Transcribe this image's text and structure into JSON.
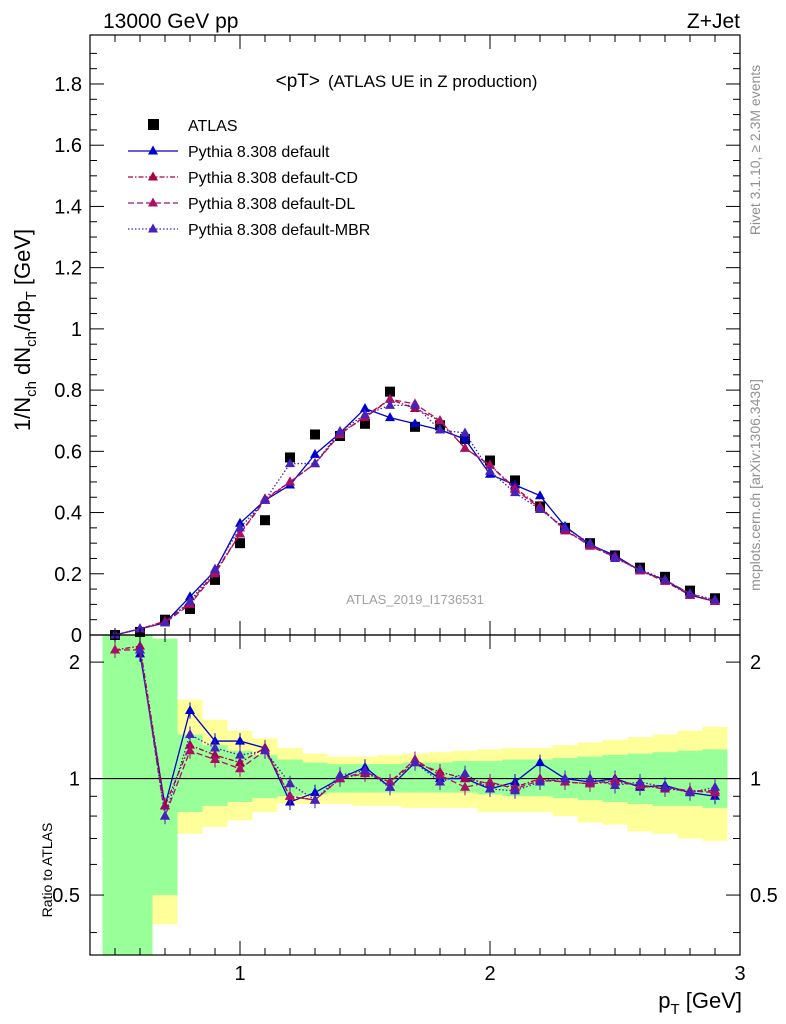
{
  "header": {
    "left": "13000 GeV pp",
    "right": "Z+Jet"
  },
  "side": {
    "rivet": "Rivet 3.1.10, ≥ 2.3M events",
    "mcplots": "mcplots.cern.ch [arXiv:1306.3436]"
  },
  "chart_data": [
    {
      "type": "scatter",
      "title_main": "<pT>",
      "title_sub": "(ATLAS UE in Z production)",
      "ylabel": "1/N_ch dN_ch/dp_T [GeV]",
      "watermark": "ATLAS_2019_I1736531",
      "xlim": [
        0.4,
        3.0
      ],
      "ylim": [
        0,
        1.96
      ],
      "yticks": [
        "0",
        "0.2",
        "0.4",
        "0.6",
        "0.8",
        "1",
        "1.2",
        "1.4",
        "1.6",
        "1.8"
      ],
      "legend_position": "top-left",
      "x": [
        0.5,
        0.6,
        0.7,
        0.8,
        0.9,
        1.0,
        1.1,
        1.2,
        1.3,
        1.4,
        1.5,
        1.6,
        1.7,
        1.8,
        1.9,
        2.0,
        2.1,
        2.2,
        2.3,
        2.4,
        2.5,
        2.6,
        2.7,
        2.8,
        2.9
      ],
      "series": [
        {
          "name": "ATLAS",
          "color": "#000000",
          "marker": "square",
          "line": "none",
          "values": [
            0.0,
            0.01,
            0.05,
            0.085,
            0.18,
            0.3,
            0.375,
            0.58,
            0.655,
            0.65,
            0.69,
            0.795,
            0.68,
            0.685,
            0.64,
            0.57,
            0.505,
            0.42,
            0.35,
            0.3,
            0.26,
            0.22,
            0.19,
            0.145,
            0.12
          ]
        },
        {
          "name": "Pythia 8.308 default",
          "color": "#0000cc",
          "marker": "triangle",
          "line": "solid",
          "values": [
            0.0,
            0.02,
            0.04,
            0.125,
            0.21,
            0.365,
            0.44,
            0.49,
            0.59,
            0.66,
            0.74,
            0.71,
            0.69,
            0.67,
            0.64,
            0.525,
            0.49,
            0.455,
            0.355,
            0.295,
            0.26,
            0.21,
            0.18,
            0.13,
            0.11
          ]
        },
        {
          "name": "Pythia 8.308 default-CD",
          "color": "#aa0044",
          "marker": "triangle",
          "line": "dashdot",
          "values": [
            0.0,
            0.02,
            0.045,
            0.105,
            0.205,
            0.33,
            0.445,
            0.5,
            0.56,
            0.66,
            0.71,
            0.77,
            0.74,
            0.7,
            0.61,
            0.555,
            0.48,
            0.42,
            0.34,
            0.295,
            0.255,
            0.21,
            0.175,
            0.13,
            0.11
          ]
        },
        {
          "name": "Pythia 8.308 default-DL",
          "color": "#aa1166",
          "marker": "triangle",
          "line": "dashed",
          "values": [
            0.0,
            0.02,
            0.04,
            0.1,
            0.2,
            0.33,
            0.44,
            0.5,
            0.56,
            0.655,
            0.715,
            0.77,
            0.755,
            0.7,
            0.61,
            0.555,
            0.475,
            0.415,
            0.345,
            0.29,
            0.255,
            0.21,
            0.18,
            0.135,
            0.11
          ]
        },
        {
          "name": "Pythia 8.308 default-MBR",
          "color": "#4422bb",
          "marker": "triangle",
          "line": "dotted",
          "values": [
            0.0,
            0.02,
            0.04,
            0.11,
            0.215,
            0.35,
            0.44,
            0.56,
            0.56,
            0.665,
            0.72,
            0.75,
            0.75,
            0.67,
            0.66,
            0.535,
            0.465,
            0.41,
            0.35,
            0.3,
            0.25,
            0.215,
            0.18,
            0.135,
            0.115
          ]
        }
      ]
    },
    {
      "type": "scatter",
      "ylabel": "Ratio to ATLAS",
      "xlabel": "p_T [GeV]",
      "xlim": [
        0.4,
        3.0
      ],
      "ylim": [
        0.35,
        2.35
      ],
      "yscale": "log",
      "xticks": [
        "1",
        "2",
        "3"
      ],
      "yticks": [
        "0.5",
        "1",
        "2"
      ],
      "x": [
        0.5,
        0.6,
        0.7,
        0.8,
        0.9,
        1.0,
        1.1,
        1.2,
        1.3,
        1.4,
        1.5,
        1.6,
        1.7,
        1.8,
        1.9,
        2.0,
        2.1,
        2.2,
        2.3,
        2.4,
        2.5,
        2.6,
        2.7,
        2.8,
        2.9
      ],
      "bands": {
        "x_edges": [
          0.45,
          0.65,
          0.75,
          0.85,
          0.95,
          1.05,
          1.15,
          1.25,
          1.35,
          1.45,
          1.55,
          1.65,
          1.75,
          1.85,
          1.95,
          2.05,
          2.15,
          2.25,
          2.35,
          2.45,
          2.55,
          2.65,
          2.75,
          2.85,
          2.95
        ],
        "yellow_lo": [
          0.35,
          0.42,
          0.72,
          0.75,
          0.78,
          0.82,
          0.86,
          0.86,
          0.86,
          0.85,
          0.85,
          0.84,
          0.84,
          0.84,
          0.82,
          0.82,
          0.82,
          0.8,
          0.77,
          0.76,
          0.73,
          0.72,
          0.7,
          0.69
        ],
        "yellow_hi": [
          2.35,
          2.3,
          1.6,
          1.42,
          1.33,
          1.27,
          1.2,
          1.16,
          1.14,
          1.14,
          1.15,
          1.16,
          1.17,
          1.18,
          1.19,
          1.2,
          1.2,
          1.22,
          1.24,
          1.26,
          1.28,
          1.3,
          1.33,
          1.36
        ],
        "green_lo": [
          0.35,
          0.5,
          0.82,
          0.85,
          0.87,
          0.89,
          0.9,
          0.91,
          0.92,
          0.92,
          0.92,
          0.92,
          0.92,
          0.92,
          0.91,
          0.9,
          0.9,
          0.89,
          0.88,
          0.87,
          0.86,
          0.85,
          0.85,
          0.84
        ],
        "green_hi": [
          2.35,
          2.3,
          1.3,
          1.22,
          1.18,
          1.15,
          1.12,
          1.1,
          1.09,
          1.09,
          1.09,
          1.1,
          1.1,
          1.11,
          1.11,
          1.12,
          1.12,
          1.13,
          1.14,
          1.15,
          1.16,
          1.17,
          1.18,
          1.19
        ]
      },
      "series": [
        {
          "name": "Pythia 8.308 default",
          "color": "#0000cc",
          "marker": "triangle",
          "line": "solid",
          "values": [
            null,
            2.1,
            0.85,
            1.5,
            1.25,
            1.25,
            1.2,
            0.87,
            0.92,
            1.0,
            1.07,
            0.95,
            1.1,
            1.0,
            1.0,
            0.94,
            0.98,
            1.1,
            1.0,
            0.98,
            1.0,
            0.95,
            0.96,
            0.92,
            0.9
          ]
        },
        {
          "name": "Pythia 8.308 default-CD",
          "color": "#aa0044",
          "marker": "triangle",
          "line": "dashdot",
          "values": [
            2.15,
            2.2,
            0.85,
            1.22,
            1.15,
            1.1,
            1.2,
            0.9,
            0.88,
            1.0,
            1.03,
            0.98,
            1.1,
            1.04,
            1.0,
            0.97,
            0.95,
            1.0,
            0.98,
            0.97,
            0.98,
            0.96,
            0.94,
            0.93,
            0.93
          ]
        },
        {
          "name": "Pythia 8.308 default-DL",
          "color": "#aa1166",
          "marker": "triangle",
          "line": "dashed",
          "values": [
            2.15,
            2.15,
            0.8,
            1.18,
            1.12,
            1.06,
            1.18,
            0.9,
            0.88,
            1.0,
            1.04,
            0.98,
            1.12,
            1.02,
            0.95,
            0.98,
            0.94,
            0.99,
            0.98,
            0.97,
            0.99,
            0.96,
            0.95,
            0.93,
            0.92
          ]
        },
        {
          "name": "Pythia 8.308 default-MBR",
          "color": "#4422bb",
          "marker": "triangle",
          "line": "dotted",
          "values": [
            null,
            2.15,
            0.8,
            1.3,
            1.2,
            1.15,
            1.18,
            0.97,
            0.88,
            1.02,
            1.05,
            0.95,
            1.1,
            0.98,
            1.03,
            0.94,
            0.93,
            0.98,
            1.0,
            1.0,
            0.96,
            0.98,
            0.95,
            0.92,
            0.95
          ]
        }
      ]
    }
  ]
}
